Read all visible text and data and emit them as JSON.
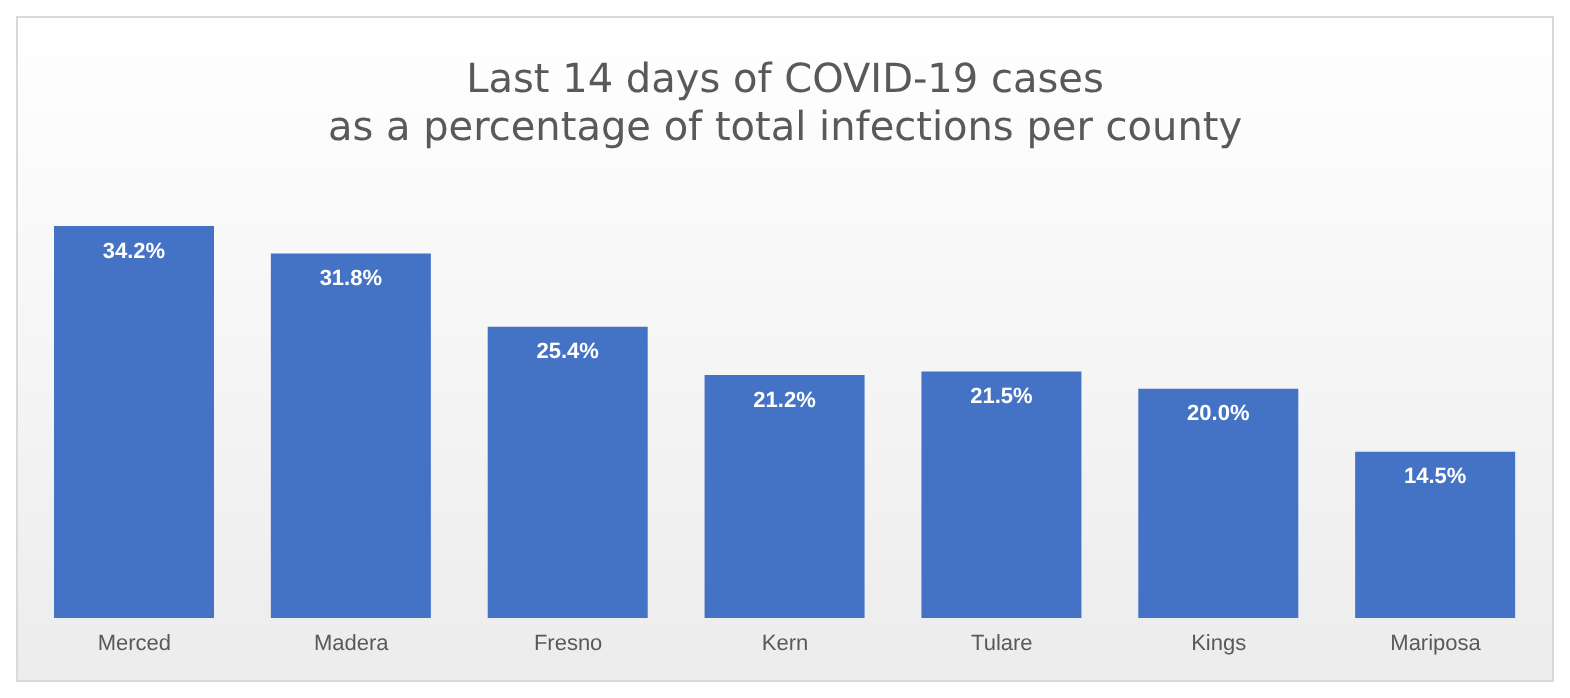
{
  "chart_data": {
    "type": "bar",
    "title": "Last 14 days of COVID-19 cases\nas a percentage of total infections per county",
    "categories": [
      "Merced",
      "Madera",
      "Fresno",
      "Kern",
      "Tulare",
      "Kings",
      "Mariposa"
    ],
    "values": [
      34.2,
      31.8,
      25.4,
      21.2,
      21.5,
      20.0,
      14.5
    ],
    "value_labels": [
      "34.2%",
      "31.8%",
      "25.4%",
      "21.2%",
      "21.5%",
      "20.0%",
      "14.5%"
    ],
    "color": "#4472c4"
  }
}
